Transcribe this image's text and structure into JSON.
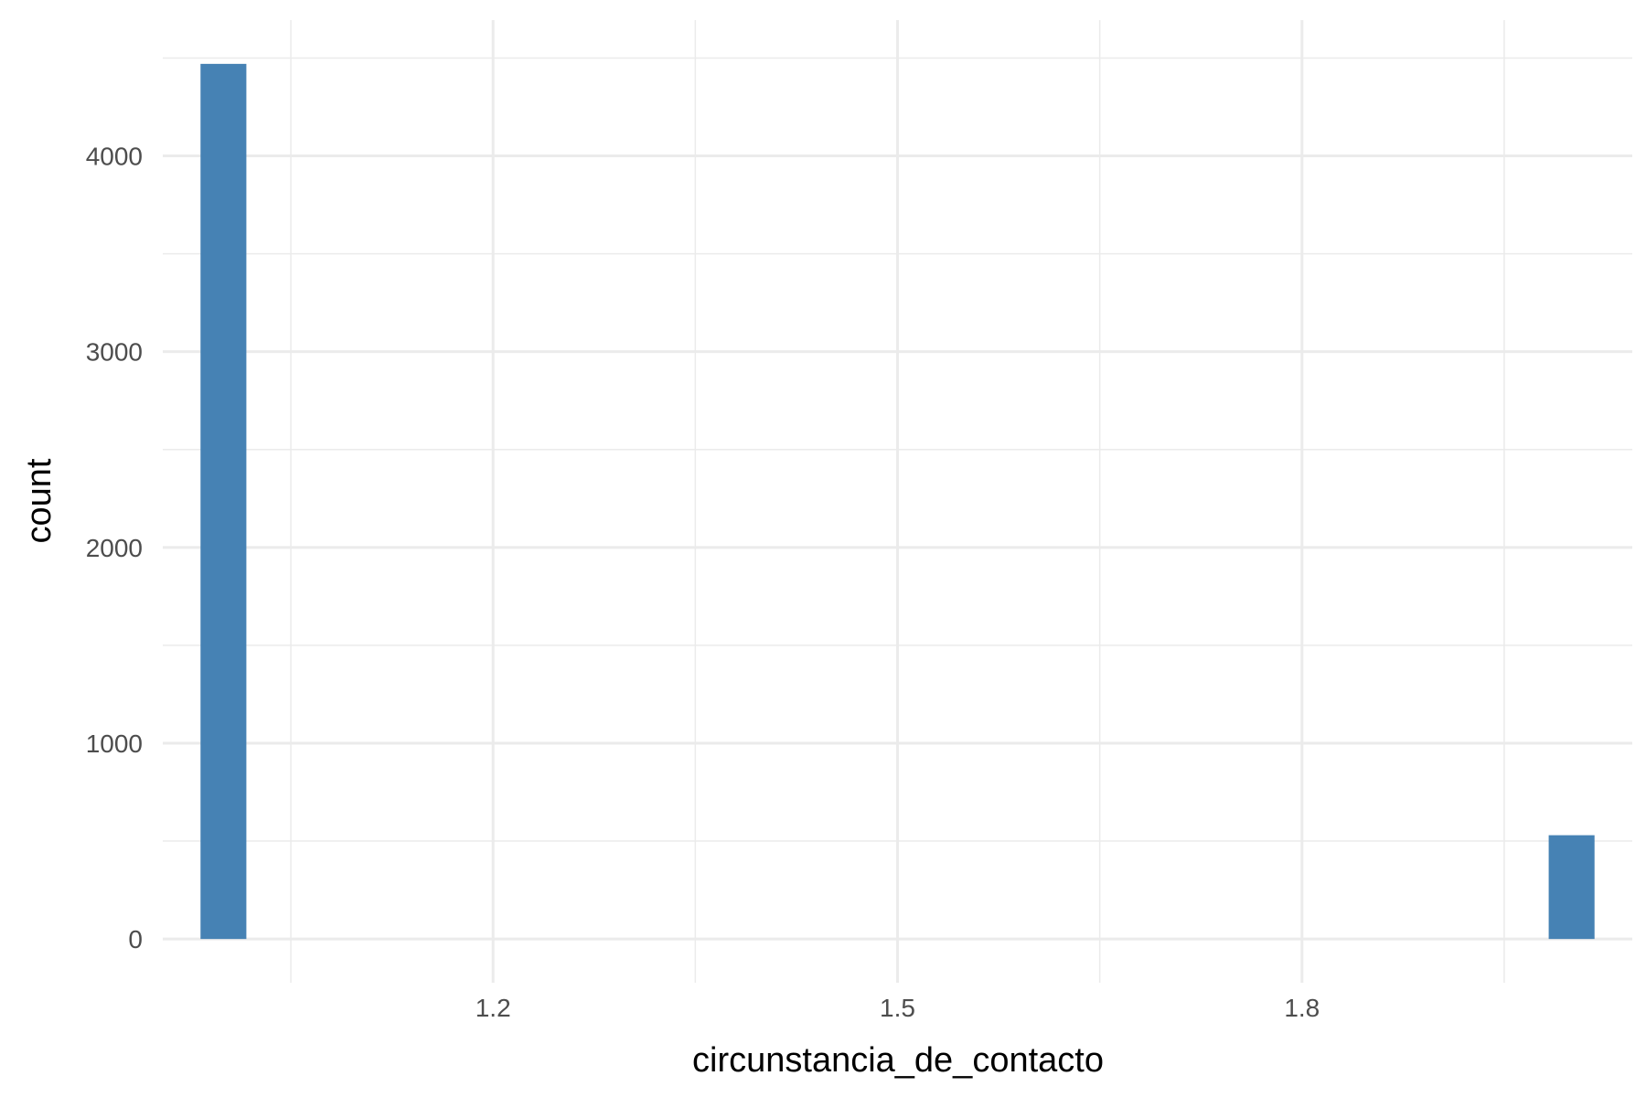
{
  "chart_data": {
    "type": "bar",
    "xlabel": "circunstancia_de_contacto",
    "ylabel": "count",
    "xlim": [
      0.955,
      2.045
    ],
    "ylim": [
      -223.5,
      4693.5
    ],
    "x_ticks": [
      1.2,
      1.5,
      1.8
    ],
    "x_tick_labels": [
      "1.2",
      "1.5",
      "1.8"
    ],
    "x_minor_ticks": [
      1.05,
      1.35,
      1.65,
      1.95
    ],
    "y_ticks": [
      0,
      1000,
      2000,
      3000,
      4000
    ],
    "y_tick_labels": [
      "0",
      "1000",
      "2000",
      "3000",
      "4000"
    ],
    "y_minor_ticks": [
      500,
      1500,
      2500,
      3500,
      4500
    ],
    "bar_color": "#4682B4",
    "grid": true,
    "bars": [
      {
        "xmin": 0.983,
        "xmax": 1.017,
        "value": 4470
      },
      {
        "xmin": 1.983,
        "xmax": 2.017,
        "value": 530
      }
    ]
  }
}
